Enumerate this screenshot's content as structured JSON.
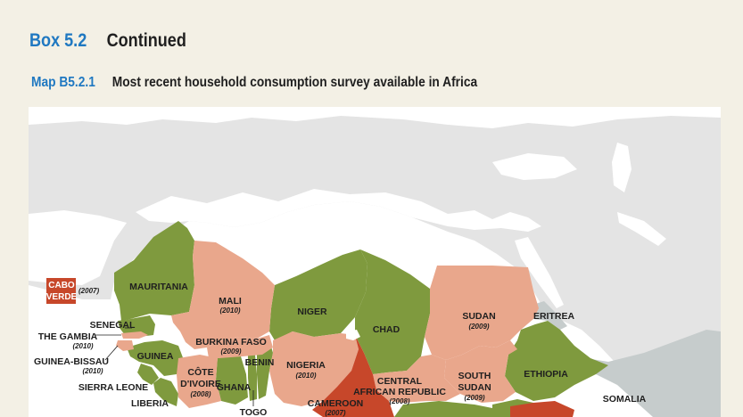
{
  "box": {
    "number": "Box 5.2",
    "title": "Continued"
  },
  "map": {
    "number": "Map B5.2.1",
    "title": "Most recent household consumption survey available in Africa"
  },
  "colors": {
    "recent": "#7f9a3e",
    "older": "#e9a78c",
    "oldest": "#c7472a",
    "no_data": "#c6cccc",
    "background_land": "#e4e4e4",
    "sea": "#ffffff",
    "accent": "#1f78c1"
  },
  "countries": [
    {
      "name": "CABO VERDE",
      "year": "(2007)",
      "category": "oldest"
    },
    {
      "name": "MAURITANIA",
      "year": "",
      "category": "recent"
    },
    {
      "name": "MALI",
      "year": "(2010)",
      "category": "older"
    },
    {
      "name": "NIGER",
      "year": "",
      "category": "recent"
    },
    {
      "name": "CHAD",
      "year": "",
      "category": "recent"
    },
    {
      "name": "SUDAN",
      "year": "(2009)",
      "category": "older"
    },
    {
      "name": "ERITREA",
      "year": "",
      "category": "no_data"
    },
    {
      "name": "SENEGAL",
      "year": "",
      "category": "recent"
    },
    {
      "name": "THE GAMBIA",
      "year": "(2010)",
      "category": "older"
    },
    {
      "name": "GUINEA-BISSAU",
      "year": "(2010)",
      "category": "older"
    },
    {
      "name": "GUINEA",
      "year": "",
      "category": "recent"
    },
    {
      "name": "SIERRA LEONE",
      "year": "",
      "category": "recent"
    },
    {
      "name": "LIBERIA",
      "year": "",
      "category": "recent"
    },
    {
      "name": "BURKINA FASO",
      "year": "(2009)",
      "category": "older"
    },
    {
      "name": "CÔTE D'IVOIRE",
      "year": "(2008)",
      "category": "older"
    },
    {
      "name": "GHANA",
      "year": "",
      "category": "recent"
    },
    {
      "name": "TOGO",
      "year": "",
      "category": "recent"
    },
    {
      "name": "BENIN",
      "year": "",
      "category": "recent"
    },
    {
      "name": "NIGERIA",
      "year": "(2010)",
      "category": "older"
    },
    {
      "name": "CAMEROON",
      "year": "(2007)",
      "category": "oldest"
    },
    {
      "name": "CENTRAL AFRICAN REPUBLIC",
      "year": "(2008)",
      "category": "older"
    },
    {
      "name": "SOUTH SUDAN",
      "year": "(2009)",
      "category": "older"
    },
    {
      "name": "ETHIOPIA",
      "year": "",
      "category": "recent"
    },
    {
      "name": "SOMALIA",
      "year": "",
      "category": "no_data"
    }
  ],
  "labels": {
    "cabo_verde_1": "CABO",
    "cabo_verde_2": "VERDE",
    "cabo_verde_year": "(2007)",
    "mauritania": "MAURITANIA",
    "mali": "MALI",
    "mali_year": "(2010)",
    "niger": "NIGER",
    "chad": "CHAD",
    "sudan": "SUDAN",
    "sudan_year": "(2009)",
    "eritrea": "ERITREA",
    "senegal": "SENEGAL",
    "gambia": "THE GAMBIA",
    "gambia_year": "(2010)",
    "guinea_bissau": "GUINEA-BISSAU",
    "guinea_bissau_year": "(2010)",
    "guinea": "GUINEA",
    "sierra_leone": "SIERRA LEONE",
    "liberia": "LIBERIA",
    "burkina_faso": "BURKINA FASO",
    "burkina_faso_year": "(2009)",
    "cote_divoire_1": "CÔTE",
    "cote_divoire_2": "D'IVOIRE",
    "cote_divoire_year": "(2008)",
    "ghana": "GHANA",
    "togo": "TOGO",
    "benin": "BENIN",
    "nigeria": "NIGERIA",
    "nigeria_year": "(2010)",
    "cameroon": "CAMEROON",
    "cameroon_year": "(2007)",
    "car_1": "CENTRAL",
    "car_2": "AFRICAN REPUBLIC",
    "car_year": "(2008)",
    "south_sudan_1": "SOUTH",
    "south_sudan_2": "SUDAN",
    "south_sudan_year": "(2009)",
    "ethiopia": "ETHIOPIA",
    "somalia": "SOMALIA"
  }
}
